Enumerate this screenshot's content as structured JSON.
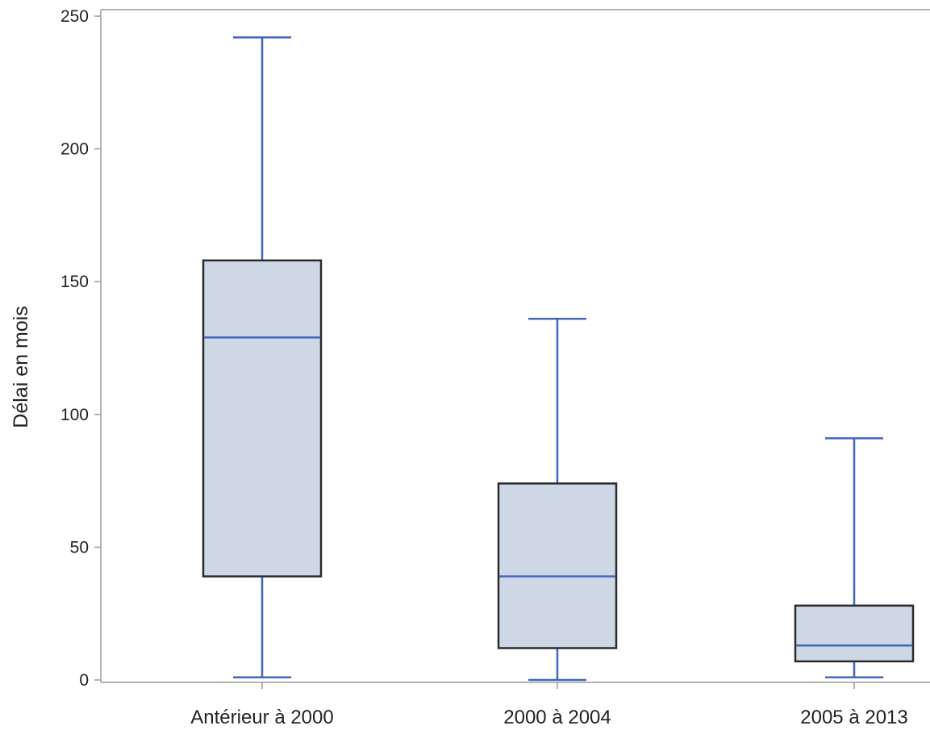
{
  "chart_data": {
    "type": "boxplot",
    "ylabel": "Délai en mois",
    "xlabel": "",
    "ylim": [
      0,
      250
    ],
    "yticks": [
      0,
      50,
      100,
      150,
      200,
      250
    ],
    "grid": false,
    "categories": [
      "Antérieur à 2000",
      "2000 à 2004",
      "2005 à 2013"
    ],
    "boxes": [
      {
        "category": "Antérieur à 2000",
        "min": 1,
        "q1": 39,
        "median": 129,
        "q3": 158,
        "max": 242
      },
      {
        "category": "2000 à 2004",
        "min": 0,
        "q1": 12,
        "median": 39,
        "q3": 74,
        "max": 136
      },
      {
        "category": "2005 à 2013",
        "min": 1,
        "q1": 7,
        "median": 13,
        "q3": 28,
        "max": 91
      }
    ],
    "colors": {
      "box_fill": "#cdd7e6",
      "box_edge": "#2b2b2b",
      "whisker": "#4466bb",
      "median": "#4466bb",
      "axis": "#9a9a9a"
    }
  }
}
